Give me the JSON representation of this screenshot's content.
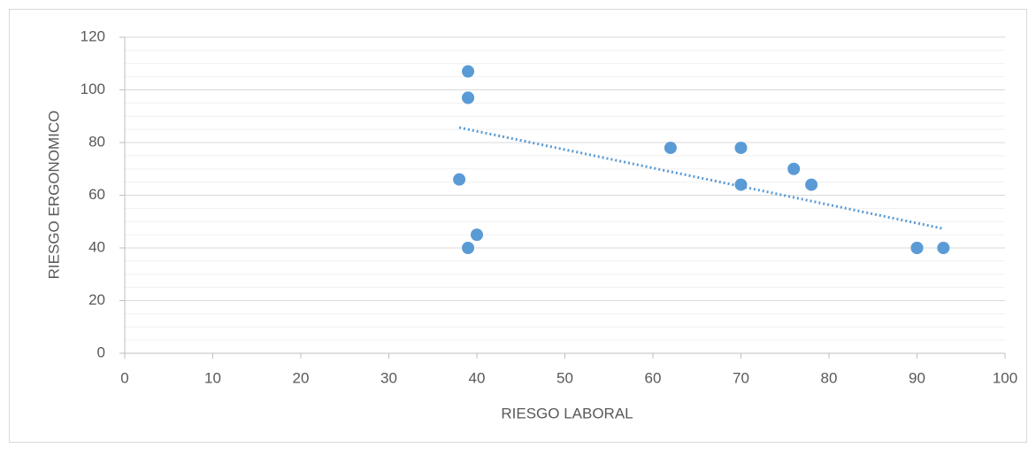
{
  "chart_data": {
    "type": "scatter",
    "x_label": "RIESGO LABORAL",
    "y_label": "RIESGO ERGONOMICO",
    "series": [
      {
        "color": "#5b9bd5",
        "x": [
          39,
          39,
          39,
          38,
          40,
          39,
          62,
          70,
          70,
          76,
          78,
          90,
          90,
          93
        ],
        "values": [
          107,
          97,
          97,
          66,
          45,
          40,
          78,
          78,
          64,
          70,
          64,
          40,
          40,
          40
        ]
      }
    ],
    "trendline": {
      "x": [
        38,
        93
      ],
      "y": [
        85.7,
        47.3
      ],
      "color": "#5b9bd5",
      "style": "dotted"
    },
    "xlim": [
      0,
      100
    ],
    "xticks": [
      0,
      10,
      20,
      30,
      40,
      50,
      60,
      70,
      80,
      90,
      100
    ],
    "ylim": [
      0,
      120
    ],
    "yticks": [
      0,
      20,
      40,
      60,
      80,
      100,
      120
    ],
    "grid": true,
    "minor_grid_step": 5
  }
}
